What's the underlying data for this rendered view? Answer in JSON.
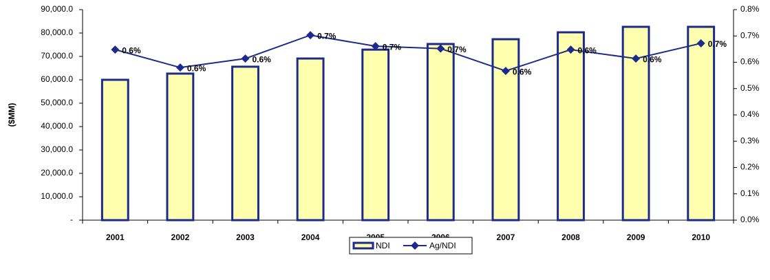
{
  "chart_data": {
    "type": "bar_line",
    "y_label": "($MM)",
    "categories": [
      "2001",
      "2002",
      "2003",
      "2004",
      "2005",
      "2006",
      "2007",
      "2008",
      "2009",
      "2010"
    ],
    "series": [
      {
        "name": "NDI",
        "type": "bar",
        "color": "#ffffb0",
        "edgecolor": "#1c2a8c",
        "values": [
          60000,
          62650,
          65600,
          69100,
          72900,
          75300,
          77350,
          80300,
          82650,
          82650
        ]
      },
      {
        "name": "Ag/NDI",
        "type": "line",
        "axis": "y2",
        "color": "#1c2a8c",
        "values": [
          0.648,
          0.58,
          0.614,
          0.703,
          0.661,
          0.652,
          0.567,
          0.648,
          0.614,
          0.672
        ],
        "value_labels": [
          "0.6%",
          "0.6%",
          "0.6%",
          "0.7%",
          "0.7%",
          "0.7%",
          "0.6%",
          "0.6%",
          "0.6%",
          "0.7%"
        ]
      }
    ],
    "ylim": [
      0,
      90000
    ],
    "yticks": [
      {
        "value": 0,
        "label": "-"
      },
      {
        "value": 10000,
        "label": "10,000.0"
      },
      {
        "value": 20000,
        "label": "20,000.0"
      },
      {
        "value": 30000,
        "label": "30,000.0"
      },
      {
        "value": 40000,
        "label": "40,000.0"
      },
      {
        "value": 50000,
        "label": "50,000.0"
      },
      {
        "value": 60000,
        "label": "60,000.0"
      },
      {
        "value": 70000,
        "label": "70,000.0"
      },
      {
        "value": 80000,
        "label": "80,000.0"
      },
      {
        "value": 90000,
        "label": "90,000.0"
      }
    ],
    "y2lim": [
      0,
      0.8
    ],
    "y2ticks": [
      {
        "value": 0,
        "label": "0.0%"
      },
      {
        "value": 0.1,
        "label": "0.1%"
      },
      {
        "value": 0.2,
        "label": "0.2%"
      },
      {
        "value": 0.3,
        "label": "0.3%"
      },
      {
        "value": 0.4,
        "label": "0.4%"
      },
      {
        "value": 0.5,
        "label": "0.5%"
      },
      {
        "value": 0.6,
        "label": "0.6%"
      },
      {
        "value": 0.7,
        "label": "0.7%"
      },
      {
        "value": 0.8,
        "label": "0.8%"
      }
    ],
    "legend": "bottom"
  }
}
